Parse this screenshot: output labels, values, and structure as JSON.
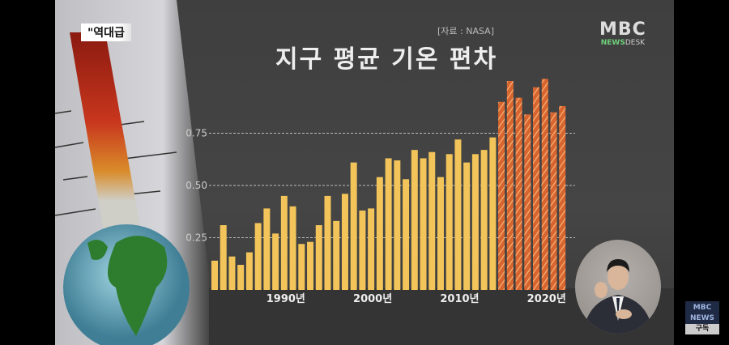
{
  "caption": "\"역대급",
  "logo": {
    "brand": "MBC",
    "sub_bold": "NEWS",
    "sub_light": "DESK"
  },
  "badge": {
    "brand": "MBC",
    "sub": "NEWS",
    "subscribe": "구독"
  },
  "colors": {
    "normal_bar": "#f2c45a",
    "highlight_bar": "#d9652e",
    "background": "#414141"
  },
  "chart_data": {
    "type": "bar",
    "title": "지구 평균 기온 편차",
    "source": "[자료 : NASA]",
    "xlabel": "",
    "ylabel": "",
    "ylim": [
      0,
      1.05
    ],
    "grid": true,
    "yticks": [
      "0.25",
      "0.50",
      "0.75"
    ],
    "xtick_labels": [
      {
        "year": 1990,
        "label": "1990년"
      },
      {
        "year": 2000,
        "label": "2000년"
      },
      {
        "year": 2010,
        "label": "2010년"
      },
      {
        "year": 2020,
        "label": "2020년"
      }
    ],
    "categories": [
      1982,
      1983,
      1984,
      1985,
      1986,
      1987,
      1988,
      1989,
      1990,
      1991,
      1992,
      1993,
      1994,
      1995,
      1996,
      1997,
      1998,
      1999,
      2000,
      2001,
      2002,
      2003,
      2004,
      2005,
      2006,
      2007,
      2008,
      2009,
      2010,
      2011,
      2012,
      2013,
      2014,
      2015,
      2016,
      2017,
      2018,
      2019,
      2020,
      2021,
      2022
    ],
    "values": [
      0.14,
      0.31,
      0.16,
      0.12,
      0.18,
      0.32,
      0.39,
      0.27,
      0.45,
      0.4,
      0.22,
      0.23,
      0.31,
      0.45,
      0.33,
      0.46,
      0.61,
      0.38,
      0.39,
      0.54,
      0.63,
      0.62,
      0.53,
      0.67,
      0.63,
      0.66,
      0.54,
      0.65,
      0.72,
      0.61,
      0.65,
      0.67,
      0.73,
      0.9,
      1.0,
      0.92,
      0.84,
      0.97,
      1.01,
      0.85,
      0.88
    ],
    "highlight_from": 2015
  }
}
